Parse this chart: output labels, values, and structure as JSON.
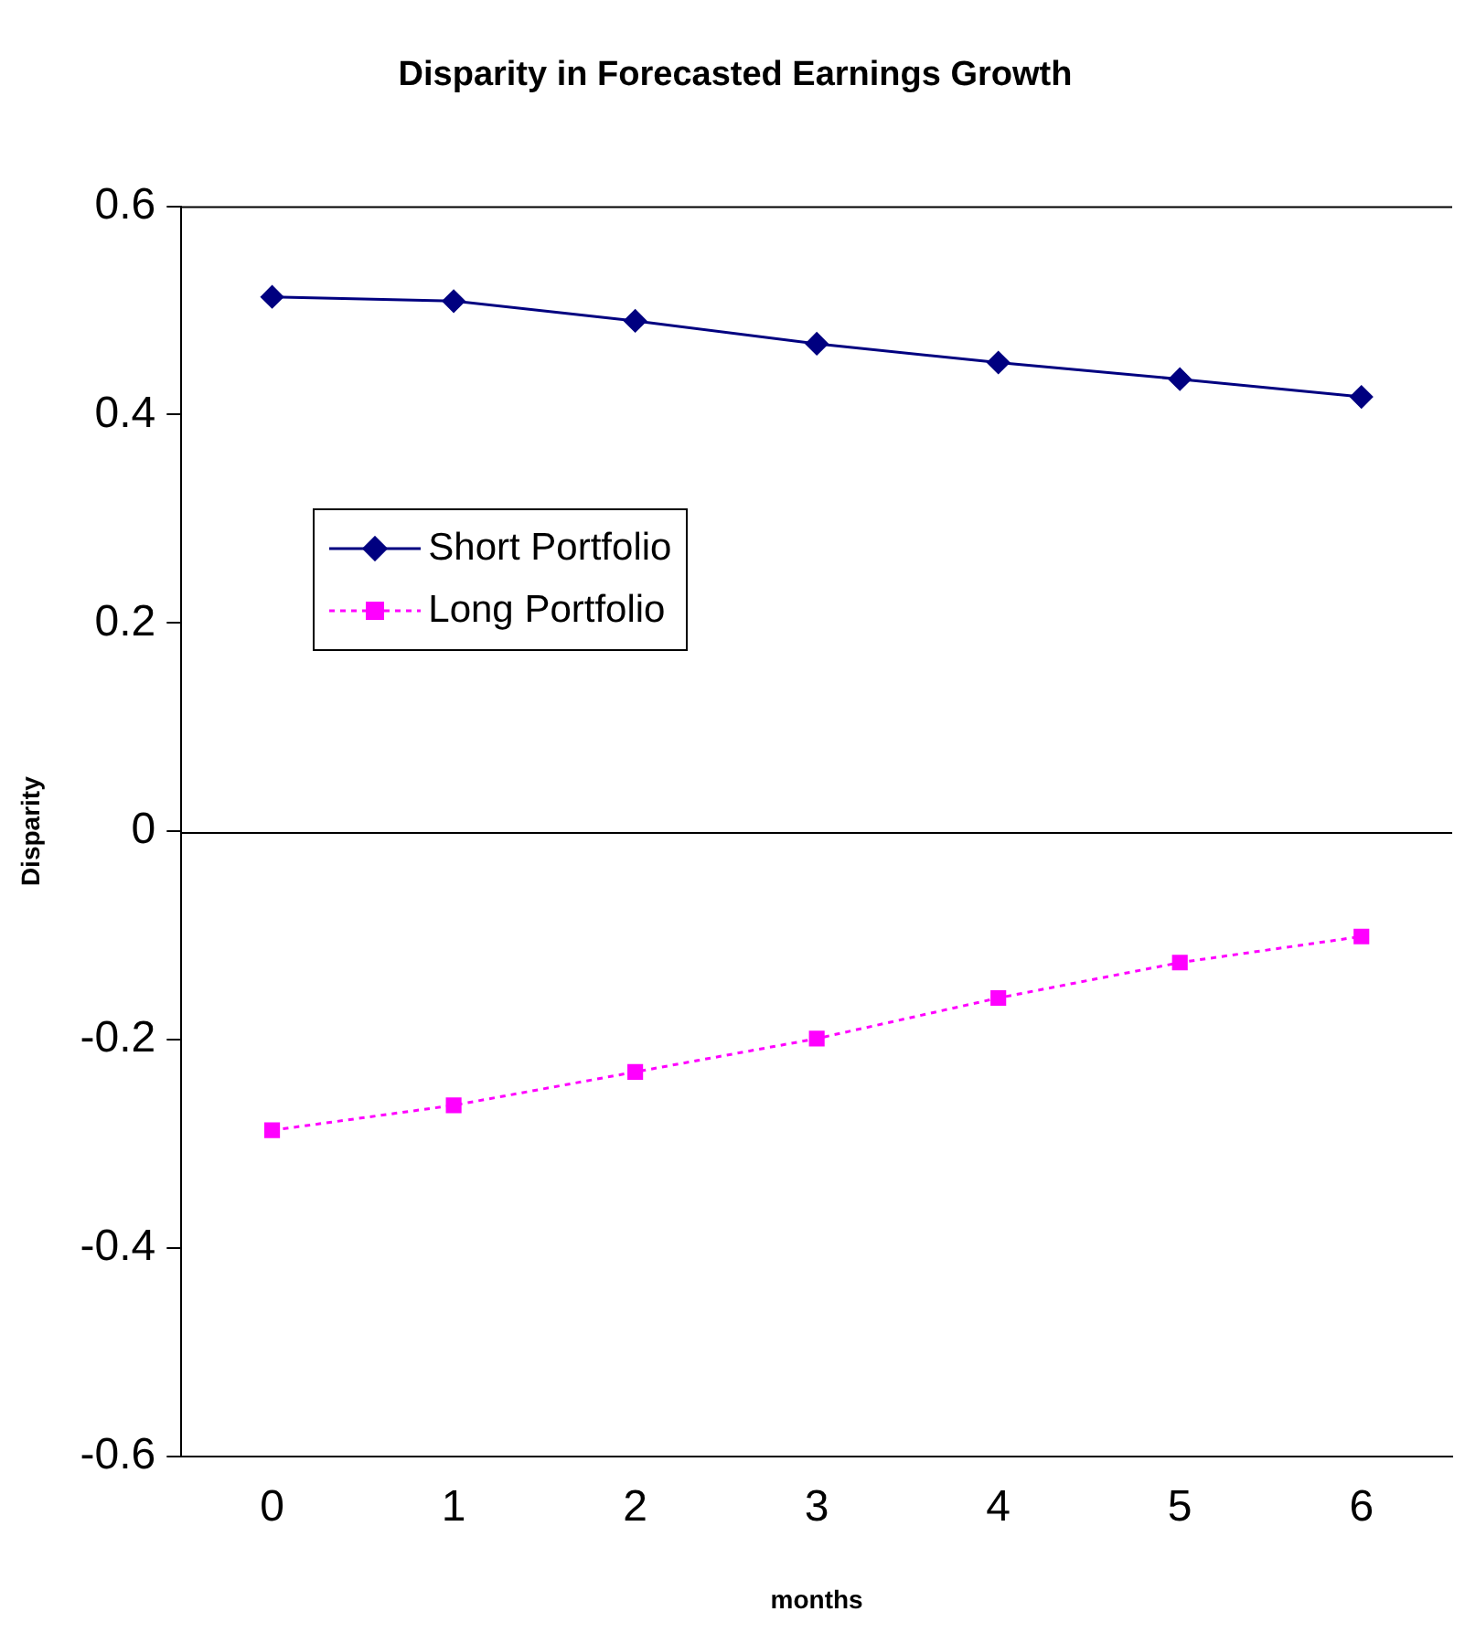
{
  "chart_data": {
    "type": "line",
    "title": "Disparity in Forecasted Earnings Growth",
    "xlabel": "months",
    "ylabel": "Disparity",
    "categories": [
      "0",
      "1",
      "2",
      "3",
      "4",
      "5",
      "6"
    ],
    "series": [
      {
        "name": "Short Portfolio",
        "color": "#000080",
        "marker": "diamond",
        "line_style": "solid",
        "values": [
          0.513,
          0.509,
          0.49,
          0.468,
          0.45,
          0.434,
          0.417
        ]
      },
      {
        "name": "Long Portfolio",
        "color": "#ff00ff",
        "marker": "square",
        "line_style": "dotted",
        "values": [
          -0.287,
          -0.263,
          -0.231,
          -0.199,
          -0.16,
          -0.126,
          -0.101
        ]
      }
    ],
    "ylim": [
      -0.6,
      0.6
    ],
    "yticks": [
      -0.6,
      -0.4,
      -0.2,
      0,
      0.2,
      0.4,
      0.6
    ],
    "grid": false,
    "legend": "top left",
    "ref_lines": [
      {
        "axis": "y",
        "value": 0,
        "color": "#000000"
      }
    ]
  }
}
